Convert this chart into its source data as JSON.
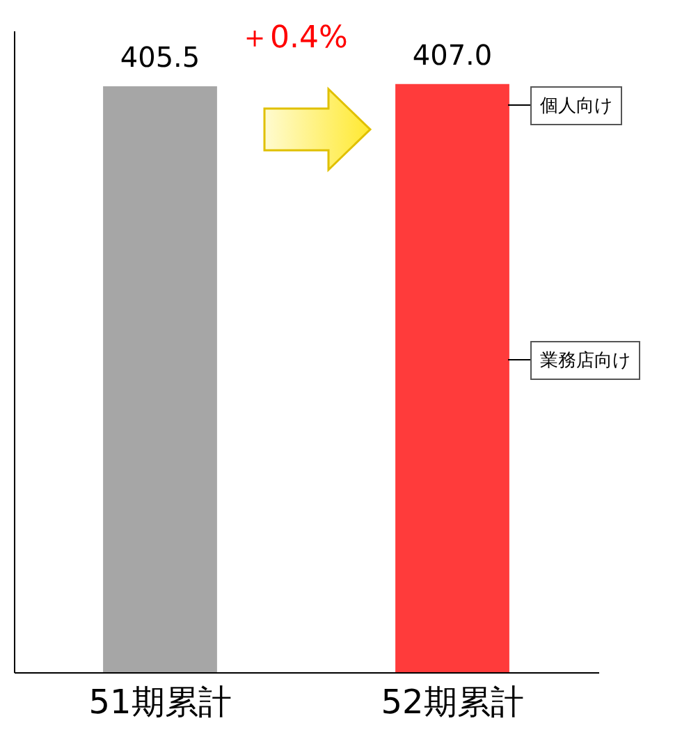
{
  "chart_data": {
    "type": "bar",
    "categories": [
      "51期累計",
      "52期累計"
    ],
    "values": [
      405.5,
      407.0
    ],
    "colors": [
      "#a6a6a6",
      "#ff3b3b"
    ],
    "value_labels": [
      "405.5",
      "407.0"
    ],
    "ylim": [
      0,
      444
    ],
    "tick_labels": "x",
    "annotations": [
      "＋0.4%",
      "個人向け",
      "業務店向け"
    ]
  }
}
